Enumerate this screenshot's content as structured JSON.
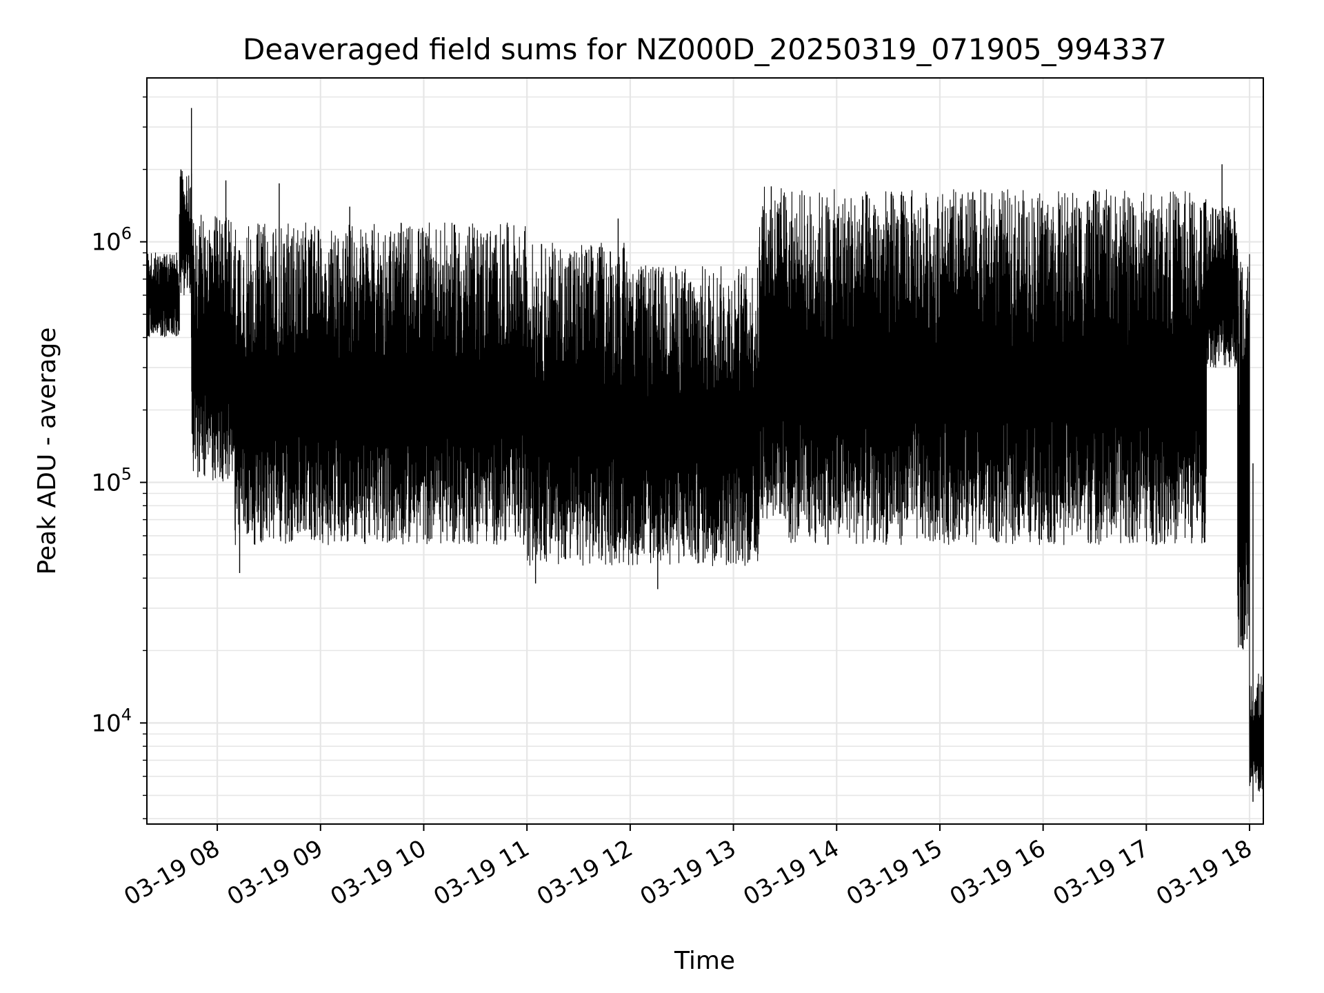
{
  "chart_data": {
    "type": "line",
    "title": "Deaveraged field sums for NZ000D_20250319_071905_994337",
    "xlabel": "Time",
    "ylabel": "Peak ADU - average",
    "yscale": "log",
    "ylim": [
      3800,
      4800000
    ],
    "xlim": [
      "2025-03-19 07:19:05",
      "2025-03-19 18:08:00"
    ],
    "x_tick_labels": [
      "03-19 08",
      "03-19 09",
      "03-19 10",
      "03-19 11",
      "03-19 12",
      "03-19 13",
      "03-19 14",
      "03-19 15",
      "03-19 16",
      "03-19 17",
      "03-19 18"
    ],
    "y_tick_labels": [
      {
        "base": "10",
        "exp": "4",
        "value": 10000
      },
      {
        "base": "10",
        "exp": "5",
        "value": 100000
      },
      {
        "base": "10",
        "exp": "6",
        "value": 1000000
      }
    ],
    "grid": true,
    "line_color": "#000000",
    "grid_color": "#e6e6e6",
    "series": [
      {
        "segments": [
          {
            "start": "2025-03-19 07:19:05",
            "end": "2025-03-19 07:38:00",
            "low": 400000,
            "high": 900000
          },
          {
            "start": "2025-03-19 07:38:00",
            "end": "2025-03-19 07:45:00",
            "low": 600000,
            "high": 2000000
          },
          {
            "start": "2025-03-19 07:45:00",
            "end": "2025-03-19 08:10:00",
            "low": 100000,
            "high": 1300000
          },
          {
            "start": "2025-03-19 08:10:00",
            "end": "2025-03-19 09:00:00",
            "low": 55000,
            "high": 1200000
          },
          {
            "start": "2025-03-19 09:00:00",
            "end": "2025-03-19 11:00:00",
            "low": 55000,
            "high": 1200000
          },
          {
            "start": "2025-03-19 11:00:00",
            "end": "2025-03-19 12:00:00",
            "low": 45000,
            "high": 1000000
          },
          {
            "start": "2025-03-19 12:00:00",
            "end": "2025-03-19 13:15:00",
            "low": 45000,
            "high": 800000
          },
          {
            "start": "2025-03-19 13:15:00",
            "end": "2025-03-19 13:30:00",
            "low": 70000,
            "high": 1700000
          },
          {
            "start": "2025-03-19 13:30:00",
            "end": "2025-03-19 17:35:00",
            "low": 55000,
            "high": 1650000
          },
          {
            "start": "2025-03-19 17:35:00",
            "end": "2025-03-19 17:53:00",
            "low": 300000,
            "high": 1400000
          },
          {
            "start": "2025-03-19 17:53:00",
            "end": "2025-03-19 18:00:00",
            "low": 20000,
            "high": 1000000
          },
          {
            "start": "2025-03-19 18:00:00",
            "end": "2025-03-19 18:08:00",
            "low": 5000,
            "high": 16000
          }
        ],
        "spikes": [
          {
            "x": "2025-03-19 07:45:00",
            "y": 3600000
          },
          {
            "x": "2025-03-19 08:05:00",
            "y": 1800000
          },
          {
            "x": "2025-03-19 08:36:00",
            "y": 1750000
          },
          {
            "x": "2025-03-19 09:17:00",
            "y": 1400000
          },
          {
            "x": "2025-03-19 11:53:00",
            "y": 1250000
          },
          {
            "x": "2025-03-19 13:22:00",
            "y": 1700000
          },
          {
            "x": "2025-03-19 17:44:00",
            "y": 2100000
          },
          {
            "x": "2025-03-19 11:05:00",
            "y": 38000
          },
          {
            "x": "2025-03-19 12:16:00",
            "y": 36000
          },
          {
            "x": "2025-03-19 08:13:00",
            "y": 42000
          },
          {
            "x": "2025-03-19 18:02:00",
            "y": 4700
          }
        ]
      }
    ]
  }
}
